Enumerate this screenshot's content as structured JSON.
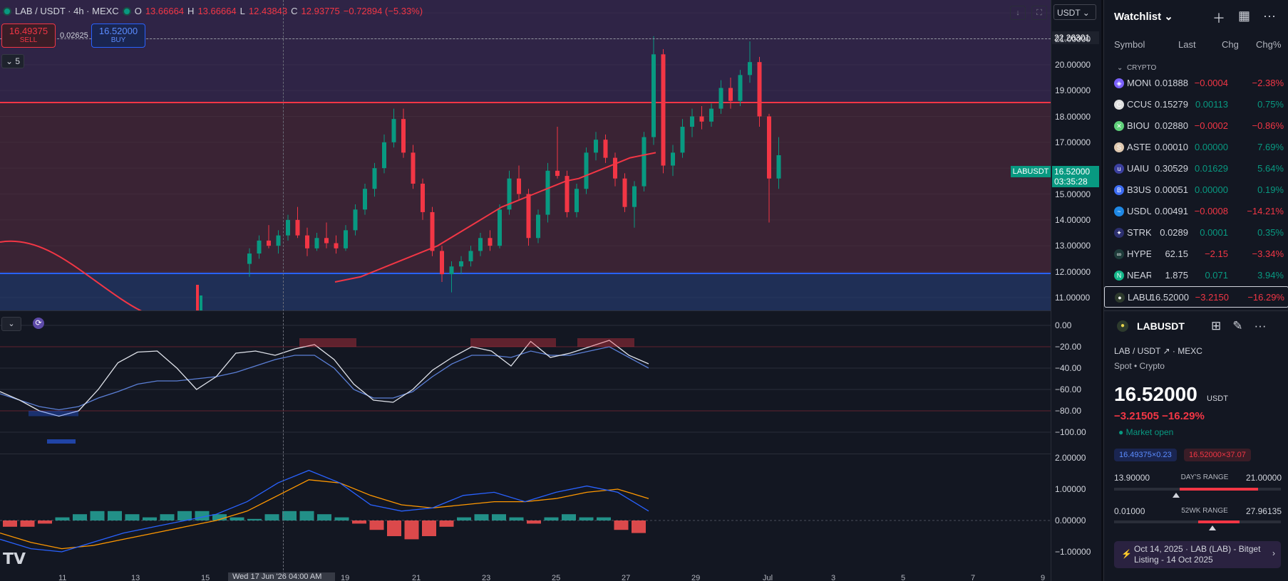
{
  "legend": {
    "symbol": "LAB / USDT · 4h · MEXC",
    "o_label": "O",
    "o": "13.66664",
    "h_label": "H",
    "h": "13.66664",
    "l_label": "L",
    "l": "12.43843",
    "c_label": "C",
    "c": "12.93775",
    "change": "−0.72894 (−5.33%)"
  },
  "trade": {
    "sell_price": "16.49375",
    "sell_label": "SELL",
    "spread": "0.02625",
    "buy_price": "16.52000",
    "buy_label": "BUY"
  },
  "indicator_count": "5",
  "currency_select": "USDT",
  "price_axis": {
    "crosshair_price": "22.26301",
    "ticks": [
      "21.00000",
      "20.00000",
      "19.00000",
      "18.00000",
      "17.00000",
      "15.00000",
      "14.00000",
      "13.00000",
      "12.00000",
      "11.00000"
    ],
    "last_symbol": "LABUSDT",
    "last_price": "16.52000",
    "countdown": "03:35:28"
  },
  "rsi_axis": [
    "0.00",
    "−20.00",
    "−40.00",
    "−60.00",
    "−80.00",
    "−100.00"
  ],
  "macd_axis": [
    "2.00000",
    "1.00000",
    "0.00000",
    "−1.00000"
  ],
  "time_axis": [
    "11",
    "13",
    "15",
    "19",
    "21",
    "23",
    "25",
    "27",
    "29",
    "Jul",
    "3",
    "5",
    "7",
    "9"
  ],
  "time_crosshair": "Wed 17 Jun '26  04:00 AM",
  "chart_data": {
    "type": "candlestick",
    "symbol": "LAB / USDT",
    "interval": "4h",
    "exchange": "MEXC",
    "ylim": [
      10.5,
      22.5
    ],
    "levels": {
      "resistance": 19.5,
      "support": 12.1
    },
    "candles": [
      {
        "o": 12.3,
        "h": 12.9,
        "l": 11.8,
        "c": 12.7
      },
      {
        "o": 12.7,
        "h": 13.4,
        "l": 12.5,
        "c": 13.2
      },
      {
        "o": 13.2,
        "h": 13.8,
        "l": 12.9,
        "c": 13.0
      },
      {
        "o": 13.0,
        "h": 13.6,
        "l": 12.7,
        "c": 13.4
      },
      {
        "o": 13.4,
        "h": 14.2,
        "l": 13.2,
        "c": 14.0
      },
      {
        "o": 14.0,
        "h": 14.5,
        "l": 13.3,
        "c": 13.4
      },
      {
        "o": 13.4,
        "h": 13.7,
        "l": 12.6,
        "c": 12.9
      },
      {
        "o": 12.9,
        "h": 13.5,
        "l": 12.8,
        "c": 13.3
      },
      {
        "o": 13.3,
        "h": 13.9,
        "l": 12.9,
        "c": 13.1
      },
      {
        "o": 13.1,
        "h": 13.4,
        "l": 12.7,
        "c": 12.9
      },
      {
        "o": 12.9,
        "h": 13.8,
        "l": 12.8,
        "c": 13.6
      },
      {
        "o": 13.6,
        "h": 14.6,
        "l": 13.4,
        "c": 14.4
      },
      {
        "o": 14.4,
        "h": 15.4,
        "l": 14.2,
        "c": 15.2
      },
      {
        "o": 15.2,
        "h": 16.2,
        "l": 14.9,
        "c": 16.0
      },
      {
        "o": 16.0,
        "h": 17.3,
        "l": 15.8,
        "c": 17.0
      },
      {
        "o": 17.0,
        "h": 18.3,
        "l": 16.8,
        "c": 17.9
      },
      {
        "o": 17.9,
        "h": 18.3,
        "l": 16.4,
        "c": 16.6
      },
      {
        "o": 16.6,
        "h": 16.9,
        "l": 15.2,
        "c": 15.4
      },
      {
        "o": 15.4,
        "h": 15.6,
        "l": 14.0,
        "c": 14.3
      },
      {
        "o": 14.3,
        "h": 14.5,
        "l": 12.6,
        "c": 12.8
      },
      {
        "o": 12.8,
        "h": 13.0,
        "l": 11.6,
        "c": 11.9
      },
      {
        "o": 11.9,
        "h": 12.4,
        "l": 11.2,
        "c": 12.2
      },
      {
        "o": 12.2,
        "h": 12.6,
        "l": 11.9,
        "c": 12.4
      },
      {
        "o": 12.4,
        "h": 13.0,
        "l": 12.2,
        "c": 12.8
      },
      {
        "o": 12.8,
        "h": 13.5,
        "l": 12.6,
        "c": 13.3
      },
      {
        "o": 13.3,
        "h": 13.6,
        "l": 12.8,
        "c": 13.0
      },
      {
        "o": 13.0,
        "h": 14.6,
        "l": 12.9,
        "c": 14.4
      },
      {
        "o": 14.4,
        "h": 15.9,
        "l": 14.2,
        "c": 15.6
      },
      {
        "o": 15.6,
        "h": 16.1,
        "l": 14.8,
        "c": 15.0
      },
      {
        "o": 15.0,
        "h": 15.2,
        "l": 13.0,
        "c": 13.3
      },
      {
        "o": 13.3,
        "h": 14.4,
        "l": 13.1,
        "c": 14.2
      },
      {
        "o": 14.2,
        "h": 16.2,
        "l": 13.9,
        "c": 15.9
      },
      {
        "o": 15.9,
        "h": 17.6,
        "l": 15.6,
        "c": 15.7
      },
      {
        "o": 15.7,
        "h": 15.9,
        "l": 14.1,
        "c": 14.3
      },
      {
        "o": 14.3,
        "h": 15.4,
        "l": 14.1,
        "c": 15.2
      },
      {
        "o": 15.2,
        "h": 16.8,
        "l": 15.0,
        "c": 16.6
      },
      {
        "o": 16.6,
        "h": 17.4,
        "l": 16.3,
        "c": 17.1
      },
      {
        "o": 17.1,
        "h": 17.3,
        "l": 16.2,
        "c": 16.4
      },
      {
        "o": 16.4,
        "h": 16.6,
        "l": 15.3,
        "c": 15.6
      },
      {
        "o": 15.6,
        "h": 15.8,
        "l": 14.3,
        "c": 14.5
      },
      {
        "o": 14.5,
        "h": 15.5,
        "l": 13.7,
        "c": 15.3
      },
      {
        "o": 15.3,
        "h": 17.4,
        "l": 15.1,
        "c": 17.2
      },
      {
        "o": 17.2,
        "h": 21.1,
        "l": 16.9,
        "c": 20.4
      },
      {
        "o": 20.4,
        "h": 20.6,
        "l": 15.8,
        "c": 16.1
      },
      {
        "o": 16.1,
        "h": 16.9,
        "l": 15.7,
        "c": 16.6
      },
      {
        "o": 16.6,
        "h": 17.9,
        "l": 16.4,
        "c": 17.6
      },
      {
        "o": 17.6,
        "h": 18.3,
        "l": 17.2,
        "c": 18.0
      },
      {
        "o": 18.0,
        "h": 18.4,
        "l": 17.5,
        "c": 17.8
      },
      {
        "o": 17.8,
        "h": 18.5,
        "l": 17.6,
        "c": 18.3
      },
      {
        "o": 18.3,
        "h": 19.4,
        "l": 18.1,
        "c": 19.1
      },
      {
        "o": 19.1,
        "h": 19.5,
        "l": 18.3,
        "c": 18.6
      },
      {
        "o": 18.6,
        "h": 19.8,
        "l": 18.4,
        "c": 19.6
      },
      {
        "o": 19.6,
        "h": 20.9,
        "l": 19.3,
        "c": 20.1
      },
      {
        "o": 20.1,
        "h": 20.3,
        "l": 17.6,
        "c": 18.0
      },
      {
        "o": 18.0,
        "h": 18.1,
        "l": 13.9,
        "c": 15.6
      },
      {
        "o": 15.6,
        "h": 17.2,
        "l": 15.2,
        "c": 16.5
      }
    ],
    "ema": [
      11.6,
      11.7,
      11.8,
      12.0,
      12.2,
      12.4,
      12.6,
      12.8,
      13.0,
      13.3,
      13.6,
      13.9,
      14.2,
      14.5,
      14.7,
      14.9,
      15.1,
      15.3,
      15.5,
      15.6,
      15.8,
      16.0,
      16.2,
      16.4,
      16.5,
      16.6
    ],
    "rsi_line": [
      -62,
      -70,
      -80,
      -85,
      -80,
      -60,
      -35,
      -25,
      -24,
      -40,
      -60,
      -48,
      -26,
      -24,
      -28,
      -22,
      -18,
      -32,
      -55,
      -70,
      -72,
      -60,
      -42,
      -30,
      -20,
      -24,
      -38,
      -15,
      -30,
      -26,
      -20,
      -14,
      -28,
      -36
    ],
    "rsi_signal": [
      -64,
      -70,
      -76,
      -79,
      -76,
      -68,
      -62,
      -55,
      -52,
      -52,
      -50,
      -48,
      -44,
      -38,
      -32,
      -28,
      -28,
      -40,
      -60,
      -68,
      -68,
      -62,
      -48,
      -36,
      -28,
      -28,
      -30,
      -24,
      -28,
      -28,
      -24,
      -20,
      -30,
      -40
    ],
    "macd_line": [
      -0.6,
      -0.9,
      -1.0,
      -0.7,
      -0.4,
      -0.2,
      0.0,
      0.2,
      0.6,
      1.2,
      1.6,
      1.2,
      0.5,
      0.3,
      0.4,
      0.8,
      0.9,
      0.6,
      0.9,
      1.1,
      0.9,
      0.3
    ],
    "macd_signal": [
      -0.4,
      -0.7,
      -0.9,
      -0.8,
      -0.6,
      -0.4,
      -0.2,
      0.0,
      0.3,
      0.8,
      1.3,
      1.2,
      0.8,
      0.5,
      0.4,
      0.5,
      0.6,
      0.6,
      0.7,
      0.9,
      1.0,
      0.7
    ],
    "macd_hist": [
      -0.2,
      -0.2,
      -0.1,
      0.1,
      0.2,
      0.3,
      0.3,
      0.2,
      0.1,
      0.2,
      0.3,
      0.3,
      0.2,
      0.1,
      0.05,
      0.2,
      0.3,
      0.3,
      0.2,
      0.1,
      -0.1,
      -0.3,
      -0.5,
      -0.6,
      -0.5,
      -0.2,
      0.1,
      0.2,
      0.2,
      0.1,
      -0.1,
      0.1,
      0.2,
      0.1,
      0.1,
      -0.3,
      -0.4
    ]
  },
  "watchlist": {
    "title": "Watchlist",
    "columns": [
      "Symbol",
      "Last",
      "Chg",
      "Chg%"
    ],
    "group": "CRYPTO",
    "rows": [
      {
        "icon": "monu-icon",
        "color": "#7b61ff",
        "glyph": "◈",
        "symbol": "MONU",
        "last": "0.01888",
        "chg": "−0.0004",
        "pct": "−2.38%",
        "dir": "neg"
      },
      {
        "icon": "ccus-icon",
        "color": "#e0e0e0",
        "glyph": "C",
        "symbol": "CCUS",
        "last": "0.15279",
        "chg": "0.00113",
        "pct": "0.75%",
        "dir": "pos"
      },
      {
        "icon": "biou-icon",
        "color": "#5fd07a",
        "glyph": "✕",
        "symbol": "BIOU",
        "last": "0.02880",
        "chg": "−0.0002",
        "pct": "−0.86%",
        "dir": "neg"
      },
      {
        "icon": "aste-icon",
        "color": "#e0c9b0",
        "glyph": "S",
        "symbol": "ASTE",
        "last": "0.00010",
        "chg": "0.00000",
        "pct": "7.69%",
        "dir": "pos"
      },
      {
        "icon": "uaiu-icon",
        "color": "#3b3f9e",
        "glyph": "u",
        "symbol": "UAIU",
        "last": "0.30529",
        "chg": "0.01629",
        "pct": "5.64%",
        "dir": "pos"
      },
      {
        "icon": "b3us-icon",
        "color": "#3d6cf2",
        "glyph": "B",
        "symbol": "B3US",
        "last": "0.00051",
        "chg": "0.00000",
        "pct": "0.19%",
        "dir": "pos"
      },
      {
        "icon": "usdu-icon",
        "color": "#1e88e5",
        "glyph": "~",
        "symbol": "USDU",
        "last": "0.00491",
        "chg": "−0.0008",
        "pct": "−14.21%",
        "dir": "neg"
      },
      {
        "icon": "strk-icon",
        "color": "#2c2f6e",
        "glyph": "✦",
        "symbol": "STRK",
        "last": "0.0289",
        "chg": "0.0001",
        "pct": "0.35%",
        "dir": "pos"
      },
      {
        "icon": "hype-icon",
        "color": "#1e3b3a",
        "glyph": "∞",
        "symbol": "HYPE",
        "last": "62.15",
        "chg": "−2.15",
        "pct": "−3.34%",
        "dir": "neg"
      },
      {
        "icon": "near-icon",
        "color": "#14b88a",
        "glyph": "N",
        "symbol": "NEAR",
        "last": "1.875",
        "chg": "0.071",
        "pct": "3.94%",
        "dir": "pos"
      },
      {
        "icon": "labu-icon",
        "color": "#2d3a2d",
        "glyph": "●",
        "symbol": "LABU",
        "last": "16.52000",
        "chg": "−3.2150",
        "pct": "−16.29%",
        "dir": "neg"
      }
    ]
  },
  "details": {
    "symbol": "LABUSDT",
    "pair": "LAB / USDT",
    "exchange": "· MEXC",
    "type": "Spot • Crypto",
    "price": "16.52000",
    "unit": "USDT",
    "change": "−3.21505  −16.29%",
    "market": "Market open",
    "bid_chip": "16.49375×0.23",
    "ask_chip": "16.52000×37.07",
    "day_low": "13.90000",
    "day_label": "DAY'S RANGE",
    "day_high": "21.00000",
    "day_pos": 0.37,
    "wk_low": "0.01000",
    "wk_label": "52WK RANGE",
    "wk_high": "27.96135",
    "wk_pos": 0.59,
    "news": "Oct 14, 2025 · LAB (LAB) - Bitget Listing - 14 Oct 2025"
  }
}
